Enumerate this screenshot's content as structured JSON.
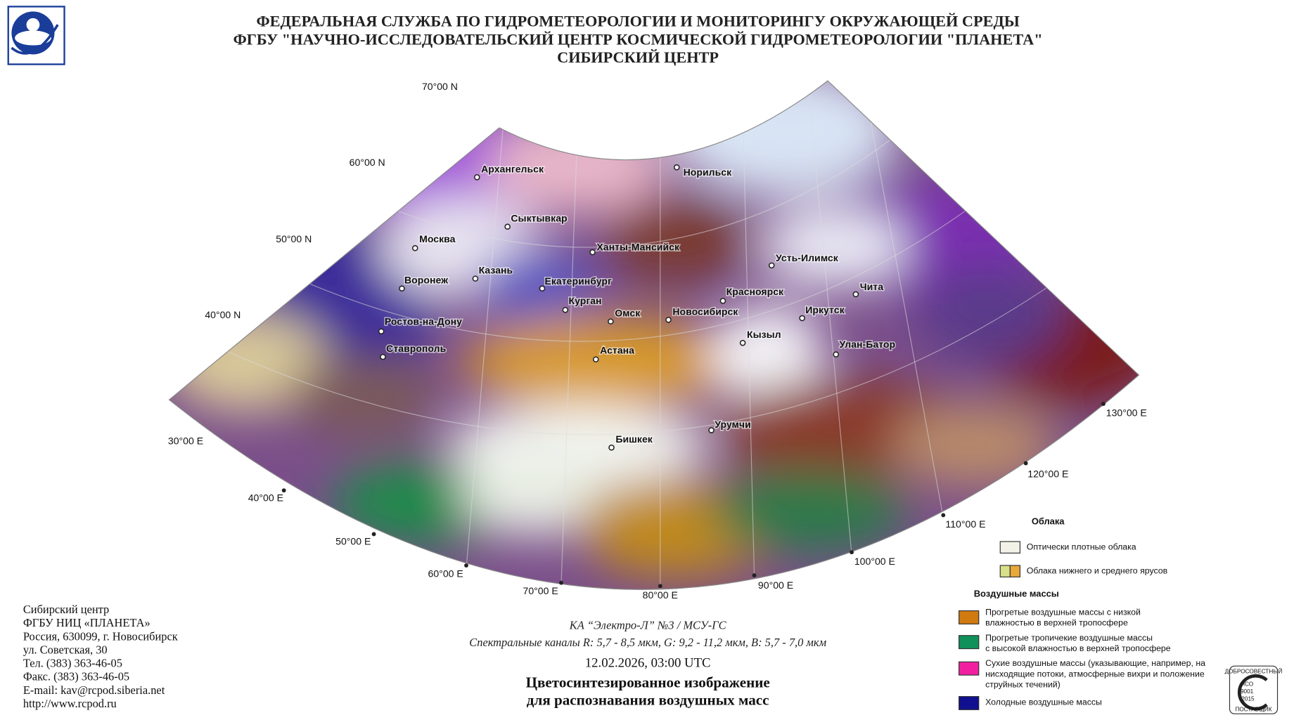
{
  "header": {
    "lines": [
      "ФЕДЕРАЛЬНАЯ СЛУЖБА ПО ГИДРОМЕТЕОРОЛОГИИ И МОНИТОРИНГУ ОКРУЖАЮЩЕЙ СРЕДЫ",
      "ФГБУ \"НАУЧНО-ИССЛЕДОВАТЕЛЬСКИЙ ЦЕНТР КОСМИЧЕСКОЙ ГИДРОМЕТЕОРОЛОГИИ \"ПЛАНЕТА\"",
      "СИБИРСКИЙ ЦЕНТР"
    ]
  },
  "map": {
    "lat_labels": [
      "70°00 N",
      "60°00 N",
      "50°00 N",
      "40°00 N"
    ],
    "lon_labels": [
      "30°00 E",
      "40°00 E",
      "50°00 E",
      "60°00 E",
      "70°00 E",
      "80°00 E",
      "90°00 E",
      "100°00 E",
      "110°00 E",
      "120°00 E",
      "130°00 E"
    ],
    "cities": [
      "Архангельск",
      "Норильск",
      "Сыктывкар",
      "Москва",
      "Ханты-Мансийск",
      "Усть-Илимск",
      "Казань",
      "Воронеж",
      "Екатеринбург",
      "Красноярск",
      "Чита",
      "Курган",
      "Омск",
      "Новосибирск",
      "Иркутск",
      "Ростов-на-Дону",
      "Кызыл",
      "Улан-Батор",
      "Ставрополь",
      "Астана",
      "Урумчи",
      "Бишкек"
    ]
  },
  "legend": {
    "clouds_title": "Облака",
    "clouds": [
      "Оптически плотные облака",
      "Облака нижнего и среднего ярусов"
    ],
    "air_title": "Воздушные массы",
    "air": [
      {
        "lines": [
          "Прогретые воздушные массы с низкой",
          "влажностью в верхней тропосфере"
        ]
      },
      {
        "lines": [
          "Прогретые тропичекие воздушные массы",
          "с высокой влажностью в верхней тропосфере"
        ]
      },
      {
        "lines": [
          "Сухие воздушные массы (указывающие, например, на",
          "нисходящие потоки, атмосферные вихри и положение",
          "струйных течений)"
        ]
      },
      {
        "lines": [
          "Холодные воздушные массы"
        ]
      }
    ]
  },
  "caption": {
    "satellite": "КА “Электро-Л” №3 / МСУ-ГС",
    "channels": "Спектральные каналы R: 5,7 - 8,5 мкм, G: 9,2 - 11,2 мкм, B: 5,7 - 7,0 мкм",
    "datetime": "12.02.2026, 03:00 UTC",
    "title": [
      "Цветосинтезированное изображение",
      "для распознавания воздушных масс"
    ]
  },
  "contact": [
    "Сибирский центр",
    "ФГБУ НИЦ «ПЛАНЕТА»",
    "Россия, 630099, г. Новосибирск",
    "ул. Советская, 30",
    "Тел. (383) 363-46-05",
    "Факс. (383) 363-46-05",
    "E-mail: kav@rcpod.siberia.net",
    "http://www.rcpod.ru"
  ],
  "badge": [
    "ДОБРОСОВЕСТНЫЙ",
    "ИСО",
    "9001",
    "-2015",
    "ПОСТАВЩИК"
  ]
}
